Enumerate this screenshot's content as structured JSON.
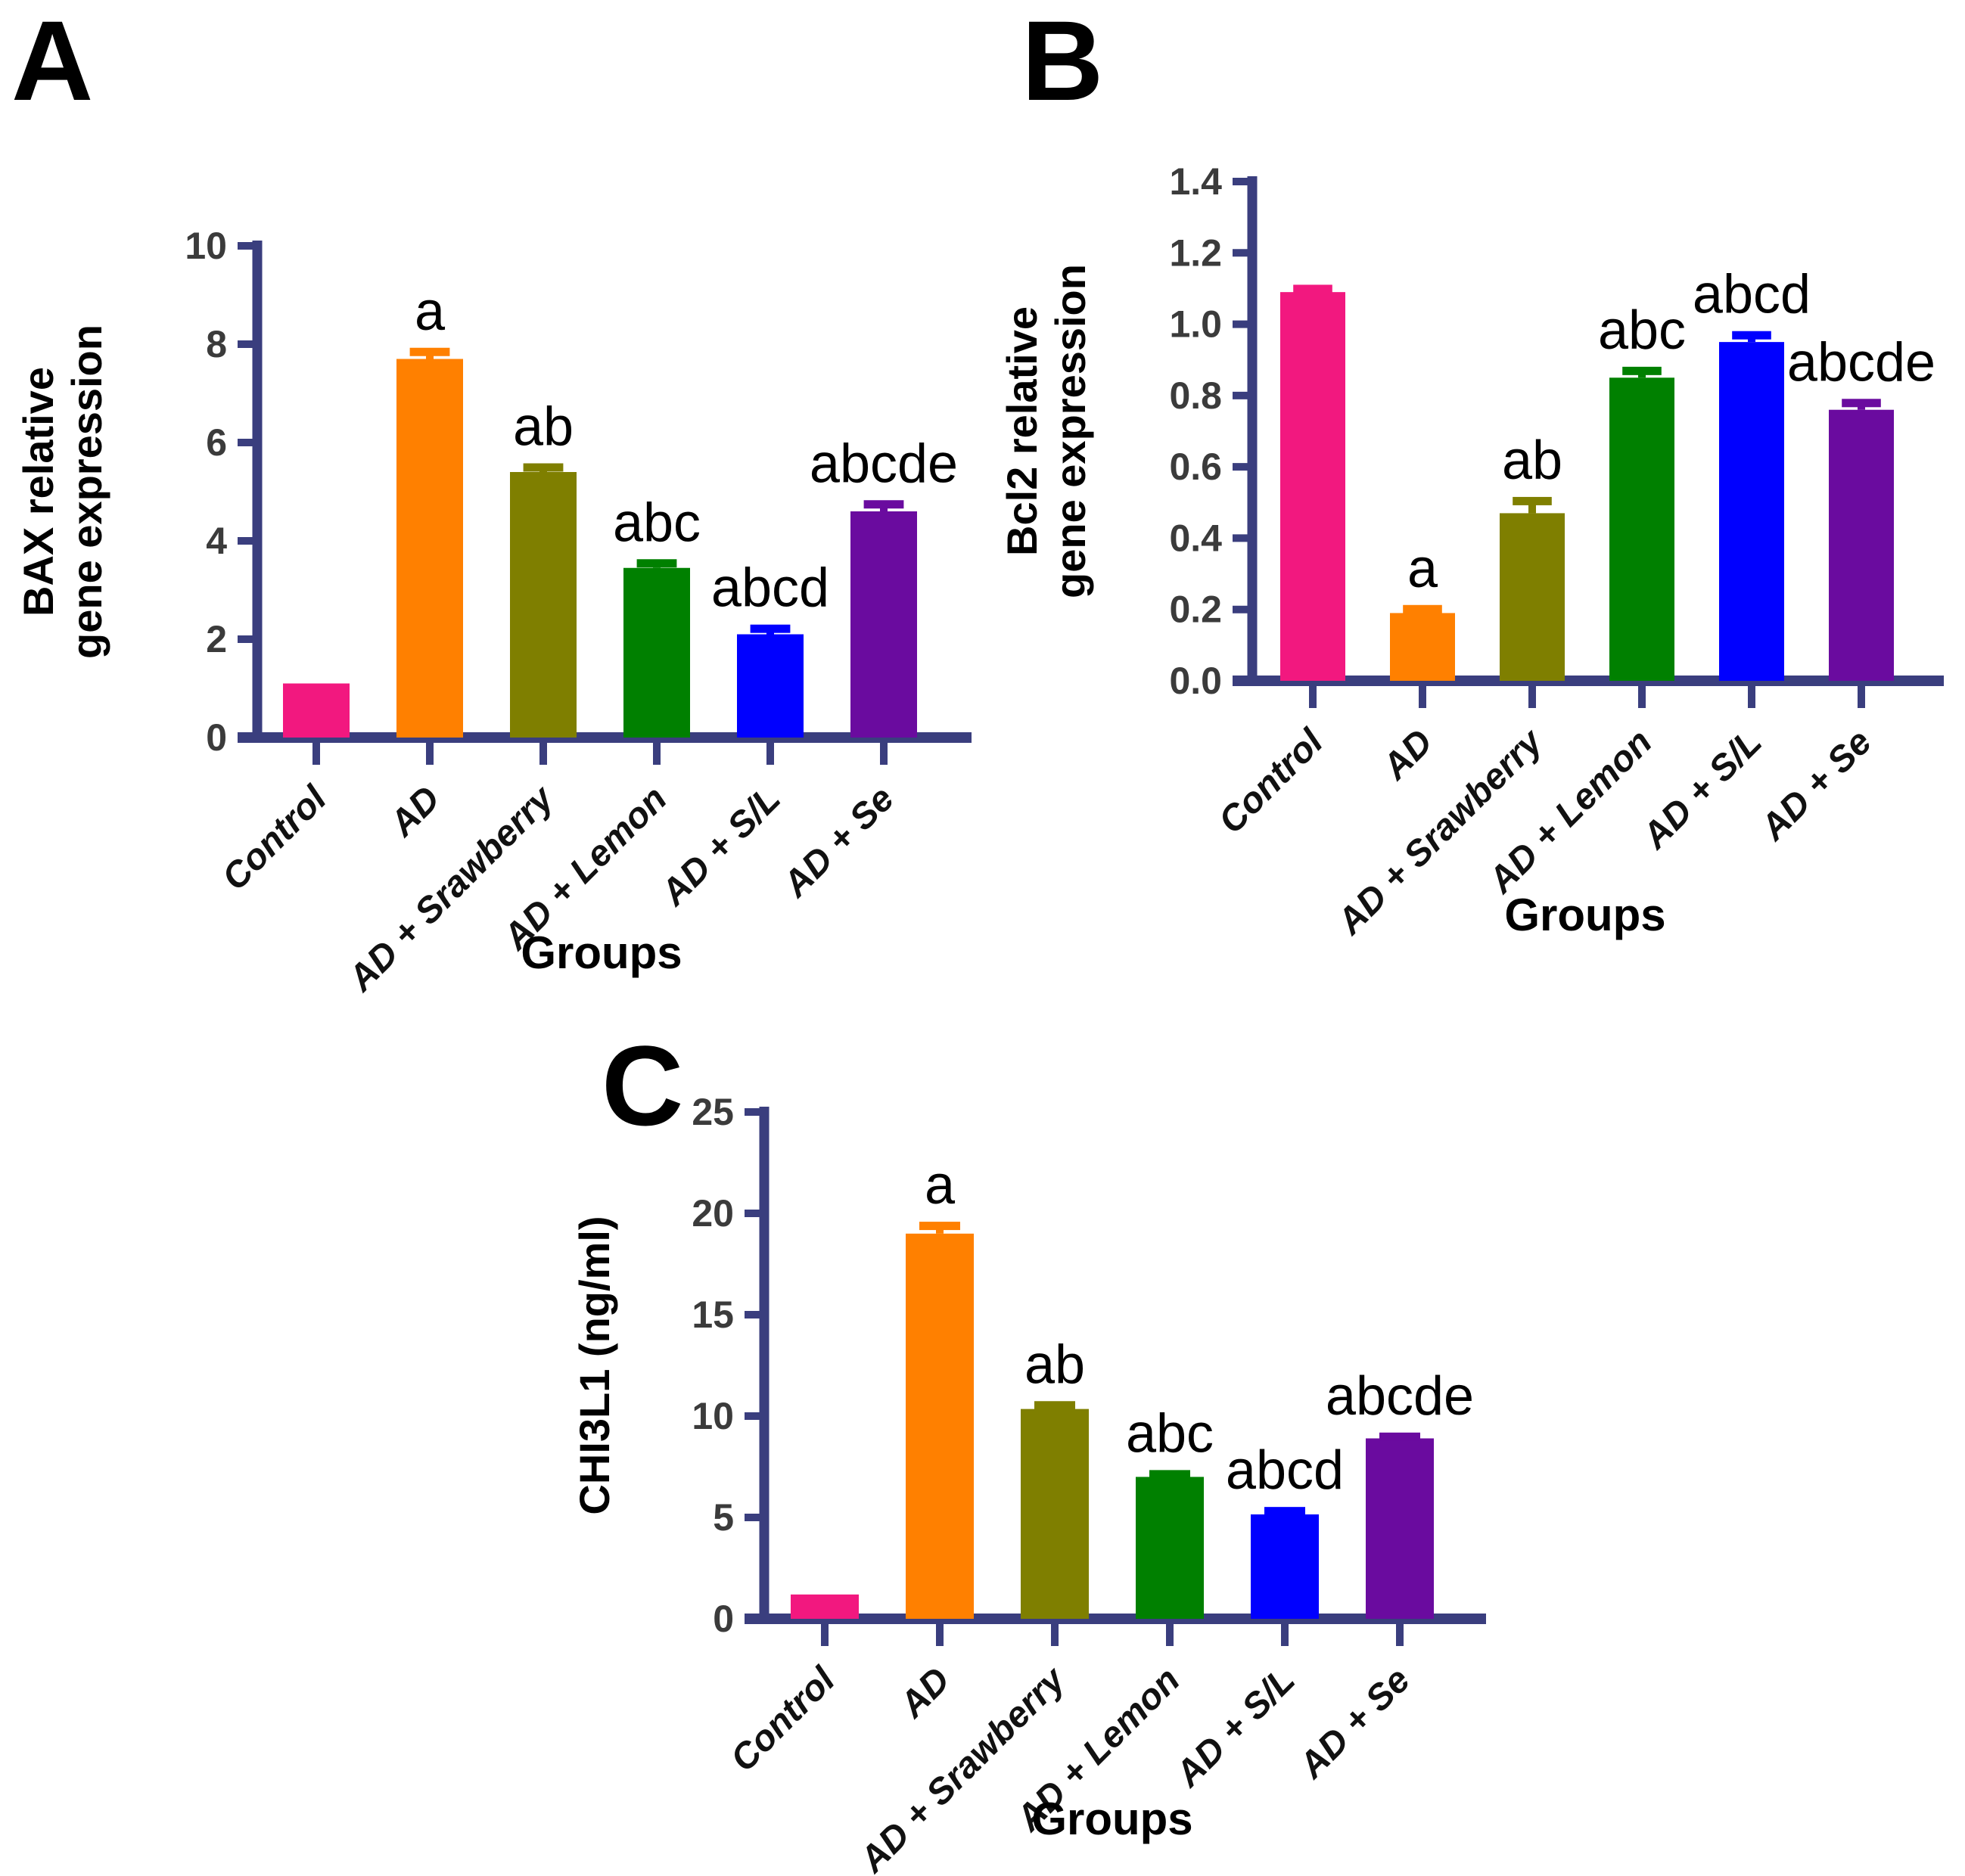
{
  "figure": {
    "panels": [
      {
        "letter": "A"
      },
      {
        "letter": "B"
      },
      {
        "letter": "C"
      }
    ]
  },
  "style": {
    "axis_color": "#3A3E7E",
    "ytick_label_color": "#3B3B3B",
    "xtick_label_color": "#111111",
    "sig_letter_color": "#000000",
    "background": "#FFFFFF"
  },
  "chart_data": [
    {
      "type": "bar",
      "panel": "A",
      "ylabel_lines": [
        "BAX relative",
        "gene expression"
      ],
      "xlabel": "Groups",
      "categories": [
        "Control",
        "AD",
        "AD + Srawberry",
        "AD + Lemon",
        "AD + S/L",
        "AD + Se"
      ],
      "values": [
        1.1,
        7.7,
        5.4,
        3.45,
        2.1,
        4.6
      ],
      "errors": [
        0,
        0.15,
        0.1,
        0.1,
        0.12,
        0.15
      ],
      "sig_letters": [
        "",
        "a",
        "ab",
        "abc",
        "abcd",
        "abcde"
      ],
      "bar_colors": [
        "#F2187F",
        "#FF8000",
        "#7F7F00",
        "#008000",
        "#0000FF",
        "#6A0B9F"
      ],
      "ylim": [
        0,
        10
      ],
      "yticks": [
        0,
        2,
        4,
        6,
        8,
        10
      ],
      "ytick_decimals": 0,
      "grid": false,
      "legend": "none"
    },
    {
      "type": "bar",
      "panel": "B",
      "ylabel_lines": [
        "Bcl2 relative",
        "gene expression"
      ],
      "xlabel": "Groups",
      "categories": [
        "Control",
        "AD",
        "AD + Srawberry",
        "AD + Lemon",
        "AD + S/L",
        "AD + Se"
      ],
      "values": [
        1.09,
        0.19,
        0.47,
        0.85,
        0.95,
        0.76
      ],
      "errors": [
        0.01,
        0.012,
        0.035,
        0.02,
        0.02,
        0.02
      ],
      "sig_letters": [
        "",
        "a",
        "ab",
        "abc",
        "abcd",
        "abcde"
      ],
      "bar_colors": [
        "#F2187F",
        "#FF8000",
        "#7F7F00",
        "#008000",
        "#0000FF",
        "#6A0B9F"
      ],
      "ylim": [
        0,
        1.4
      ],
      "yticks": [
        0,
        0.2,
        0.4,
        0.6,
        0.8,
        1.0,
        1.2,
        1.4
      ],
      "ytick_decimals": 1,
      "grid": false,
      "legend": "none"
    },
    {
      "type": "bar",
      "panel": "C",
      "ylabel_lines": [
        "CHI3L1 (ng/ml)"
      ],
      "xlabel": "Groups",
      "categories": [
        "Control",
        "AD",
        "AD + Srawberry",
        "AD + Lemon",
        "AD + S/L",
        "AD + Se"
      ],
      "values": [
        1.2,
        19.0,
        10.35,
        7.0,
        5.15,
        8.9
      ],
      "errors": [
        0,
        0.4,
        0.2,
        0.15,
        0.18,
        0.1
      ],
      "sig_letters": [
        "",
        "a",
        "ab",
        "abc",
        "abcd",
        "abcde"
      ],
      "bar_colors": [
        "#F2187F",
        "#FF8000",
        "#7F7F00",
        "#008000",
        "#0000FF",
        "#6A0B9F"
      ],
      "ylim": [
        0,
        25
      ],
      "yticks": [
        0,
        5,
        10,
        15,
        20,
        25
      ],
      "ytick_decimals": 0,
      "grid": false,
      "legend": "none"
    }
  ]
}
